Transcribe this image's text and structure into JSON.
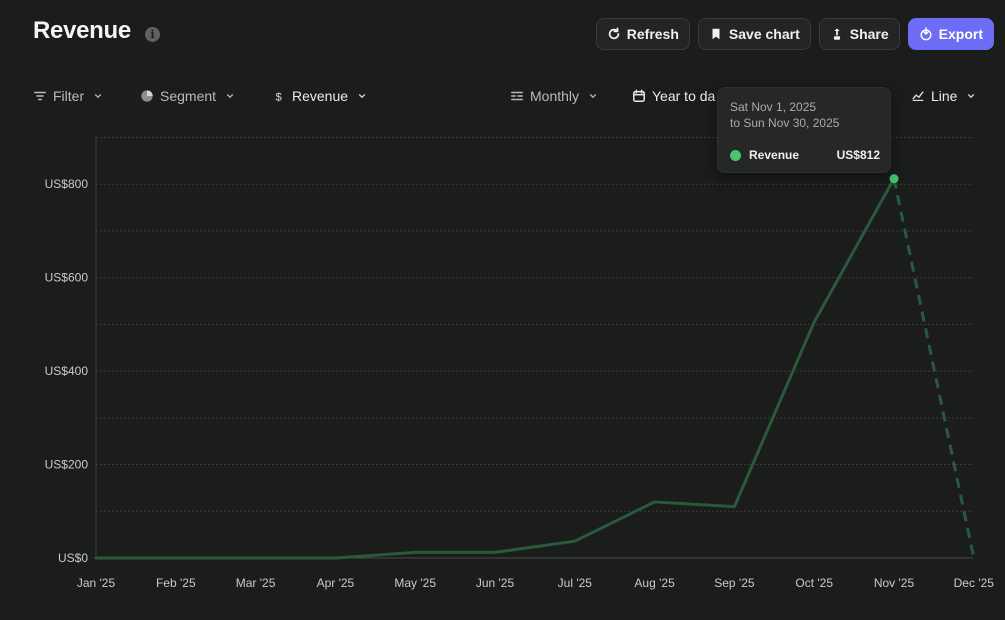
{
  "header": {
    "title": "Revenue",
    "info_icon": "info-icon",
    "actions": {
      "refresh": "Refresh",
      "save_chart": "Save chart",
      "share": "Share",
      "export": "Export"
    }
  },
  "toolbar": {
    "filter": "Filter",
    "segment": "Segment",
    "metric": "Revenue",
    "interval": "Monthly",
    "range": "Year to da",
    "chart_type": "Line"
  },
  "tooltip": {
    "line1": "Sat Nov 1, 2025",
    "line2": "to Sun Nov 30, 2025",
    "series": "Revenue",
    "value": "US$812"
  },
  "colors": {
    "accent": "#6d6cf4",
    "series_line": "#2a5a3c",
    "series_point": "#46c66e",
    "background": "#1b1c1c"
  },
  "chart_data": {
    "type": "line",
    "categories": [
      "Jan '25",
      "Feb '25",
      "Mar '25",
      "Apr '25",
      "May '25",
      "Jun '25",
      "Jul '25",
      "Aug '25",
      "Sep '25",
      "Oct '25",
      "Nov '25",
      "Dec '25"
    ],
    "series": [
      {
        "name": "Revenue",
        "values": [
          0,
          0,
          0,
          0,
          12,
          12,
          36,
          120,
          110,
          505,
          812,
          0
        ]
      }
    ],
    "dashed_from_index": 10,
    "highlight_index": 10,
    "yticks": [
      0,
      200,
      400,
      600,
      800
    ],
    "ytick_labels": [
      "US$0",
      "US$200",
      "US$400",
      "US$600",
      "US$800"
    ],
    "ylim": [
      0,
      900
    ],
    "grid": true
  }
}
